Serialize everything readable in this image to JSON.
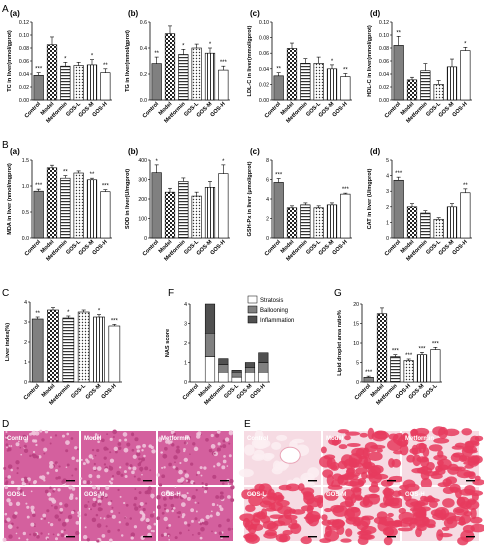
{
  "section_labels": [
    "A",
    "B",
    "C",
    "F",
    "G",
    "D",
    "E"
  ],
  "chart_data": [
    {
      "type": "bar",
      "id": "A-a",
      "panel": "(a)",
      "ylabel": "TC in liver(mmol/gprot)",
      "ylim": [
        0,
        0.12
      ],
      "ticks": [
        "0.00",
        "0.02",
        "0.04",
        "0.06",
        "0.08",
        "0.10",
        "0.12"
      ],
      "categories": [
        "Control",
        "Model",
        "Metformin",
        "GOS-L",
        "GOS-M",
        "GOS-H"
      ],
      "values": [
        0.038,
        0.085,
        0.052,
        0.053,
        0.054,
        0.042
      ],
      "errors": [
        0.004,
        0.012,
        0.006,
        0.005,
        0.008,
        0.006
      ],
      "sig": [
        "***",
        "",
        "*",
        "",
        "*",
        "**"
      ]
    },
    {
      "type": "bar",
      "id": "A-b",
      "panel": "(b)",
      "ylabel": "TG in liver(mmol/gprot)",
      "ylim": [
        0,
        0.6
      ],
      "ticks": [
        "0.0",
        "0.2",
        "0.4",
        "0.6"
      ],
      "categories": [
        "Control",
        "Model",
        "Metformin",
        "GOS-L",
        "GOS-M",
        "GOS-H"
      ],
      "values": [
        0.28,
        0.51,
        0.35,
        0.4,
        0.36,
        0.23
      ],
      "errors": [
        0.05,
        0.06,
        0.04,
        0.03,
        0.04,
        0.03
      ],
      "sig": [
        "**",
        "",
        "*",
        "",
        "*",
        "***"
      ]
    },
    {
      "type": "bar",
      "id": "A-c",
      "panel": "(c)",
      "ylabel": "LDL-C in liver(mmol/gprot)",
      "ylim": [
        0,
        0.1
      ],
      "ticks": [
        "0.00",
        "0.02",
        "0.04",
        "0.06",
        "0.08",
        "0.10"
      ],
      "categories": [
        "Control",
        "Model",
        "Metformin",
        "GOS-L",
        "GOS-M",
        "GOS-H"
      ],
      "values": [
        0.031,
        0.066,
        0.047,
        0.047,
        0.04,
        0.03
      ],
      "errors": [
        0.004,
        0.007,
        0.006,
        0.008,
        0.005,
        0.004
      ],
      "sig": [
        "**",
        "",
        "",
        "",
        "*",
        "**"
      ]
    },
    {
      "type": "bar",
      "id": "A-d",
      "panel": "(d)",
      "ylabel": "HDL-C in liver(mmol/gprot)",
      "ylim": [
        0,
        0.12
      ],
      "ticks": [
        "0.00",
        "0.02",
        "0.04",
        "0.06",
        "0.08",
        "0.10",
        "0.12"
      ],
      "categories": [
        "Control",
        "Model",
        "Metformin",
        "GOS-L",
        "GOS-M",
        "GOS-H"
      ],
      "values": [
        0.084,
        0.031,
        0.045,
        0.024,
        0.051,
        0.076
      ],
      "errors": [
        0.014,
        0.004,
        0.011,
        0.006,
        0.012,
        0.005
      ],
      "sig": [
        "**",
        "",
        "",
        "",
        "",
        "*"
      ]
    },
    {
      "type": "bar",
      "id": "B-a",
      "panel": "(a)",
      "ylabel": "MDA in liver (nmol/mgprot)",
      "ylim": [
        0,
        1.5
      ],
      "ticks": [
        "0.0",
        "0.5",
        "1.0",
        "1.5"
      ],
      "categories": [
        "Control",
        "Model",
        "Metformin",
        "GOS-L",
        "GOS-M",
        "GOS-H"
      ],
      "values": [
        0.9,
        1.35,
        1.15,
        1.25,
        1.12,
        0.89
      ],
      "errors": [
        0.04,
        0.05,
        0.05,
        0.04,
        0.03,
        0.04
      ],
      "sig": [
        "***",
        "",
        "**",
        "",
        "**",
        "***"
      ]
    },
    {
      "type": "bar",
      "id": "B-b",
      "panel": "(b)",
      "ylabel": "SOD in liver(U/mgprot)",
      "ylim": [
        0,
        400
      ],
      "ticks": [
        "0",
        "100",
        "200",
        "300",
        "400"
      ],
      "categories": [
        "Control",
        "Model",
        "Metformin",
        "GOS-L",
        "GOS-M",
        "GOS-H"
      ],
      "values": [
        335,
        235,
        290,
        215,
        260,
        330
      ],
      "errors": [
        40,
        20,
        18,
        20,
        30,
        45
      ],
      "sig": [
        "*",
        "",
        "",
        "",
        "",
        "*"
      ]
    },
    {
      "type": "bar",
      "id": "B-c",
      "panel": "(c)",
      "ylabel": "GSH-Px in liver (μmol/gprot)",
      "ylim": [
        0,
        8
      ],
      "ticks": [
        "0",
        "2",
        "4",
        "6",
        "8"
      ],
      "categories": [
        "Control",
        "Model",
        "Metformin",
        "GOS-L",
        "GOS-M",
        "GOS-H"
      ],
      "values": [
        5.7,
        3.1,
        3.4,
        3.1,
        3.4,
        4.5
      ],
      "errors": [
        0.4,
        0.2,
        0.2,
        0.2,
        0.2,
        0.1
      ],
      "sig": [
        "***",
        "",
        "",
        "",
        "",
        "***"
      ]
    },
    {
      "type": "bar",
      "id": "B-d",
      "panel": "(d)",
      "ylabel": "CAT in liver (U/mgprot)",
      "ylim": [
        0,
        5
      ],
      "ticks": [
        "0",
        "1",
        "2",
        "3",
        "4",
        "5"
      ],
      "categories": [
        "Control",
        "Model",
        "Metformin",
        "GOS-L",
        "GOS-M",
        "GOS-H"
      ],
      "values": [
        3.7,
        2.0,
        1.6,
        1.2,
        2.0,
        2.9
      ],
      "errors": [
        0.2,
        0.2,
        0.15,
        0.1,
        0.2,
        0.25
      ],
      "sig": [
        "***",
        "",
        "",
        "",
        "",
        "**"
      ]
    },
    {
      "type": "bar",
      "id": "C",
      "panel": "",
      "ylabel": "Liver index(%)",
      "ylim": [
        0,
        4
      ],
      "ticks": [
        "0",
        "1",
        "2",
        "3",
        "4"
      ],
      "categories": [
        "Control",
        "Model",
        "Metformin",
        "GOS-L",
        "GOS-M",
        "GOS-H"
      ],
      "values": [
        3.15,
        3.6,
        3.2,
        3.5,
        3.25,
        2.8
      ],
      "errors": [
        0.1,
        0.12,
        0.1,
        0.1,
        0.12,
        0.08
      ],
      "sig": [
        "**",
        "",
        "*",
        "",
        "*",
        "***"
      ]
    },
    {
      "type": "bar",
      "stacked": true,
      "id": "F",
      "panel": "",
      "ylabel": "NAS score",
      "ylim": [
        0,
        4
      ],
      "ticks": [
        "0",
        "1",
        "2",
        "3",
        "4"
      ],
      "categories": [
        "Control",
        "Model",
        "Metformin",
        "GOS-L",
        "GOS-M",
        "GOS-H"
      ],
      "series": [
        {
          "name": "Stratosis",
          "values": [
            0,
            1.3,
            0.5,
            0.25,
            0.5,
            0.5
          ]
        },
        {
          "name": "Ballooning",
          "values": [
            0,
            1.2,
            0.4,
            0.25,
            0.25,
            0.5
          ]
        },
        {
          "name": "Inflammation",
          "values": [
            0,
            1.5,
            0.3,
            0.1,
            0.25,
            0.5
          ]
        }
      ]
    },
    {
      "type": "bar",
      "id": "G",
      "panel": "",
      "ylabel": "Lipid droplet area ratio%",
      "ylim": [
        0,
        20
      ],
      "ticks": [
        "0",
        "5",
        "10",
        "15",
        "20"
      ],
      "categories": [
        "Control",
        "Model",
        "Metformin",
        "GOS-H",
        "GOS-M",
        "GOS-L"
      ],
      "values": [
        1.2,
        17.5,
        6.5,
        5.5,
        7.0,
        8.3
      ],
      "errors": [
        0.3,
        1.5,
        0.5,
        0.4,
        0.6,
        0.6
      ],
      "sig": [
        "***",
        "",
        "***",
        "***",
        "***",
        "***"
      ]
    }
  ],
  "micrographs": {
    "D": {
      "labels": [
        "Control",
        "Model",
        "Metformin",
        "GOS-L",
        "GOS-M",
        "GOS-H"
      ],
      "base": "#d4609e",
      "cell": "#b8407f",
      "light": "#efc3da"
    },
    "E": {
      "labels": [
        "Control",
        "Model",
        "Metformin",
        "GOS-L",
        "GOS-M",
        "GOS-H"
      ],
      "base": "#f6dbe3",
      "cell": "#e63b5e",
      "light": "#fbeef2"
    }
  },
  "colors": {
    "bar_fill": "#808080",
    "bar_light": "#ffffff",
    "axis": "#000000"
  }
}
